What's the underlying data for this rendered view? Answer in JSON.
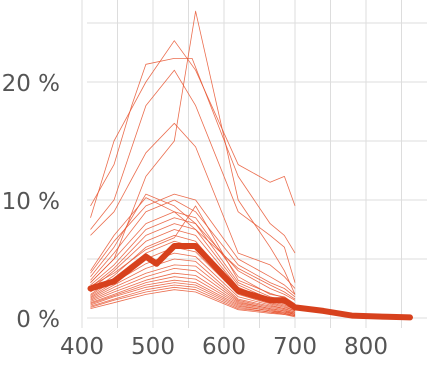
{
  "chart_data": {
    "type": "line",
    "x_ticks": [
      400,
      500,
      600,
      700,
      800
    ],
    "y_ticks": [
      0,
      10,
      20
    ],
    "y_tick_suffix": " %",
    "xlim": [
      400,
      870
    ],
    "ylim": [
      -0.5,
      27
    ],
    "grid": true,
    "colors": {
      "series": "#e8532f",
      "mean": "#d7411d",
      "grid": "#dddddd"
    },
    "mean_series": {
      "x": [
        412,
        445,
        490,
        505,
        530,
        560,
        620,
        665,
        685,
        700,
        740,
        780,
        830,
        862
      ],
      "y": [
        2.5,
        3.1,
        5.2,
        4.6,
        6.1,
        6.1,
        2.3,
        1.5,
        1.5,
        0.9,
        0.6,
        0.2,
        0.1,
        0.05
      ]
    },
    "series": [
      {
        "x": [
          412,
          445,
          470,
          490,
          530,
          555,
          620,
          665,
          685,
          700
        ],
        "y": [
          9.5,
          13.0,
          18.0,
          21.5,
          22.0,
          22.0,
          12.0,
          8.0,
          7.0,
          5.5
        ]
      },
      {
        "x": [
          412,
          445,
          490,
          530,
          560,
          620,
          665,
          685,
          700
        ],
        "y": [
          8.5,
          15.0,
          20.0,
          23.5,
          21.0,
          13.0,
          11.5,
          12.0,
          9.5
        ]
      },
      {
        "x": [
          412,
          445,
          490,
          530,
          560,
          620,
          665,
          685,
          700
        ],
        "y": [
          7.5,
          10.0,
          18.0,
          21.0,
          18.0,
          9.0,
          7.0,
          6.0,
          3.0
        ]
      },
      {
        "x": [
          412,
          445,
          490,
          530,
          560,
          620,
          665,
          685,
          700
        ],
        "y": [
          7.0,
          9.0,
          14.0,
          16.5,
          14.5,
          5.5,
          4.5,
          3.5,
          2.5
        ]
      },
      {
        "x": [
          412,
          445,
          490,
          530,
          560,
          620,
          665,
          685,
          700
        ],
        "y": [
          3.0,
          5.0,
          12.0,
          15.0,
          26.0,
          10.0,
          6.0,
          4.0,
          2.0
        ]
      },
      {
        "x": [
          412,
          445,
          490,
          530,
          560,
          620,
          665,
          685,
          700
        ],
        "y": [
          3.5,
          6.0,
          10.5,
          9.5,
          8.0,
          4.0,
          2.5,
          2.0,
          1.5
        ]
      },
      {
        "x": [
          412,
          445,
          490,
          530,
          560,
          620,
          665,
          685,
          700
        ],
        "y": [
          3.2,
          5.5,
          9.0,
          10.0,
          9.0,
          4.5,
          3.0,
          2.5,
          1.8
        ]
      },
      {
        "x": [
          412,
          445,
          490,
          530,
          560,
          620,
          665,
          685,
          700
        ],
        "y": [
          3.0,
          5.0,
          8.0,
          9.0,
          8.5,
          3.5,
          2.0,
          1.8,
          1.2
        ]
      },
      {
        "x": [
          412,
          445,
          490,
          530,
          560,
          620,
          665,
          685,
          700
        ],
        "y": [
          2.8,
          4.5,
          7.5,
          8.5,
          8.0,
          3.0,
          1.8,
          1.5,
          1.0
        ]
      },
      {
        "x": [
          412,
          445,
          490,
          530,
          560,
          620,
          665,
          685,
          700
        ],
        "y": [
          2.6,
          4.2,
          7.0,
          8.0,
          7.5,
          2.8,
          1.6,
          1.3,
          0.9
        ]
      },
      {
        "x": [
          412,
          445,
          490,
          530,
          560,
          620,
          665,
          685,
          700
        ],
        "y": [
          2.4,
          4.0,
          6.5,
          7.5,
          7.0,
          2.6,
          1.5,
          1.2,
          0.8
        ]
      },
      {
        "x": [
          412,
          445,
          490,
          530,
          560,
          620,
          665,
          685,
          700
        ],
        "y": [
          2.2,
          3.6,
          6.0,
          7.0,
          6.5,
          2.4,
          1.4,
          1.1,
          0.7
        ]
      },
      {
        "x": [
          412,
          445,
          490,
          530,
          560,
          620,
          665,
          685,
          700
        ],
        "y": [
          2.0,
          3.4,
          5.5,
          6.5,
          6.0,
          2.2,
          1.3,
          1.0,
          0.6
        ]
      },
      {
        "x": [
          412,
          445,
          490,
          530,
          560,
          620,
          665,
          685,
          700
        ],
        "y": [
          1.9,
          3.2,
          5.0,
          6.0,
          5.6,
          2.0,
          1.2,
          0.9,
          0.6
        ]
      },
      {
        "x": [
          412,
          445,
          490,
          530,
          560,
          620,
          665,
          685,
          700
        ],
        "y": [
          1.8,
          3.0,
          4.6,
          5.5,
          5.2,
          1.8,
          1.1,
          0.8,
          0.5
        ]
      },
      {
        "x": [
          412,
          445,
          490,
          530,
          560,
          620,
          665,
          685,
          700
        ],
        "y": [
          1.7,
          2.8,
          4.2,
          5.0,
          4.8,
          1.6,
          1.0,
          0.8,
          0.5
        ]
      },
      {
        "x": [
          412,
          445,
          490,
          530,
          560,
          620,
          665,
          685,
          700
        ],
        "y": [
          1.6,
          2.6,
          3.8,
          4.5,
          4.4,
          1.5,
          0.9,
          0.7,
          0.4
        ]
      },
      {
        "x": [
          412,
          445,
          490,
          530,
          560,
          620,
          665,
          685,
          700
        ],
        "y": [
          1.5,
          2.4,
          3.5,
          4.2,
          4.0,
          1.4,
          0.8,
          0.6,
          0.4
        ]
      },
      {
        "x": [
          412,
          445,
          490,
          530,
          560,
          620,
          665,
          685,
          700
        ],
        "y": [
          1.4,
          2.2,
          3.2,
          3.8,
          3.6,
          1.3,
          0.8,
          0.6,
          0.3
        ]
      },
      {
        "x": [
          412,
          445,
          490,
          530,
          560,
          620,
          665,
          685,
          700
        ],
        "y": [
          1.3,
          2.0,
          3.0,
          3.5,
          3.3,
          1.2,
          0.7,
          0.5,
          0.3
        ]
      },
      {
        "x": [
          412,
          445,
          490,
          530,
          560,
          620,
          665,
          685,
          700
        ],
        "y": [
          1.2,
          1.9,
          2.8,
          3.2,
          3.0,
          1.1,
          0.6,
          0.5,
          0.3
        ]
      },
      {
        "x": [
          412,
          445,
          490,
          530,
          560,
          620,
          665,
          685,
          700
        ],
        "y": [
          1.1,
          1.8,
          2.6,
          3.0,
          2.8,
          1.0,
          0.6,
          0.4,
          0.2
        ]
      },
      {
        "x": [
          412,
          445,
          490,
          530,
          560,
          620,
          665,
          685,
          700
        ],
        "y": [
          1.0,
          1.6,
          2.4,
          2.8,
          2.6,
          0.9,
          0.5,
          0.4,
          0.2
        ]
      },
      {
        "x": [
          412,
          445,
          490,
          530,
          560,
          620,
          665,
          685,
          700
        ],
        "y": [
          0.9,
          1.5,
          2.2,
          2.6,
          2.4,
          0.8,
          0.5,
          0.3,
          0.2
        ]
      },
      {
        "x": [
          412,
          445,
          490,
          530,
          560,
          620,
          665,
          685,
          700
        ],
        "y": [
          0.8,
          1.3,
          2.0,
          2.4,
          2.2,
          0.7,
          0.4,
          0.3,
          0.1
        ]
      },
      {
        "x": [
          412,
          445,
          490,
          530,
          560,
          620,
          665,
          685,
          700
        ],
        "y": [
          3.8,
          6.5,
          9.5,
          10.5,
          10.0,
          5.0,
          3.5,
          2.8,
          2.0
        ]
      },
      {
        "x": [
          412,
          445,
          490,
          530,
          560,
          620,
          665,
          685,
          700
        ],
        "y": [
          4.0,
          7.0,
          10.2,
          9.0,
          7.5,
          4.2,
          2.8,
          2.2,
          1.6
        ]
      },
      {
        "x": [
          412,
          445,
          490,
          530,
          560,
          620,
          665,
          685,
          700
        ],
        "y": [
          2.7,
          3.8,
          5.8,
          6.8,
          9.5,
          3.2,
          2.1,
          1.7,
          1.1
        ]
      }
    ]
  }
}
